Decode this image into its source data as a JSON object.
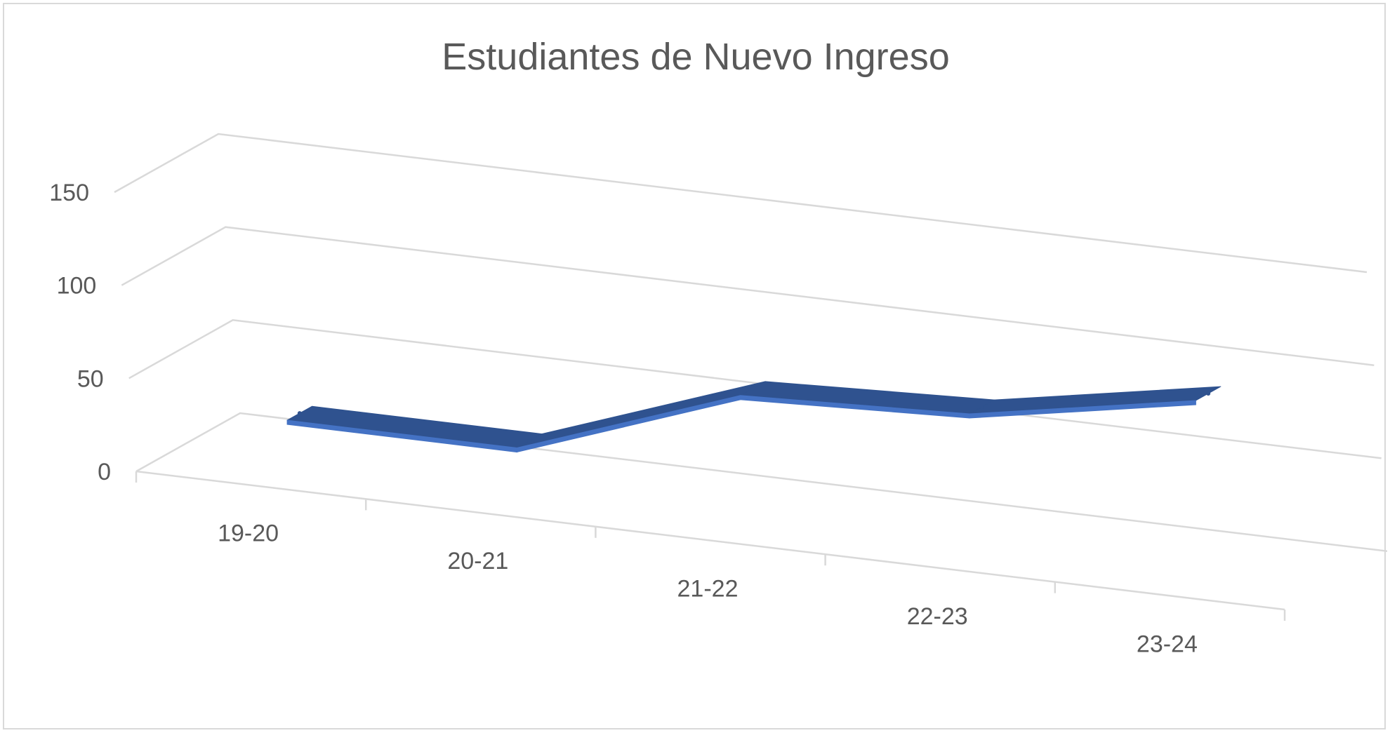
{
  "chart_data": {
    "type": "line",
    "style": "3d-ribbon",
    "title": "Estudiantes de Nuevo Ingreso",
    "categories": [
      "19-20",
      "20-21",
      "21-22",
      "22-23",
      "23-24"
    ],
    "series": [
      {
        "values": [
          23,
          23,
          66,
          71,
          93
        ],
        "color": "#2f528f"
      }
    ],
    "ylim": [
      0,
      150
    ],
    "yticks": [
      0,
      50,
      100,
      150
    ],
    "grid": true,
    "legend": "none"
  }
}
